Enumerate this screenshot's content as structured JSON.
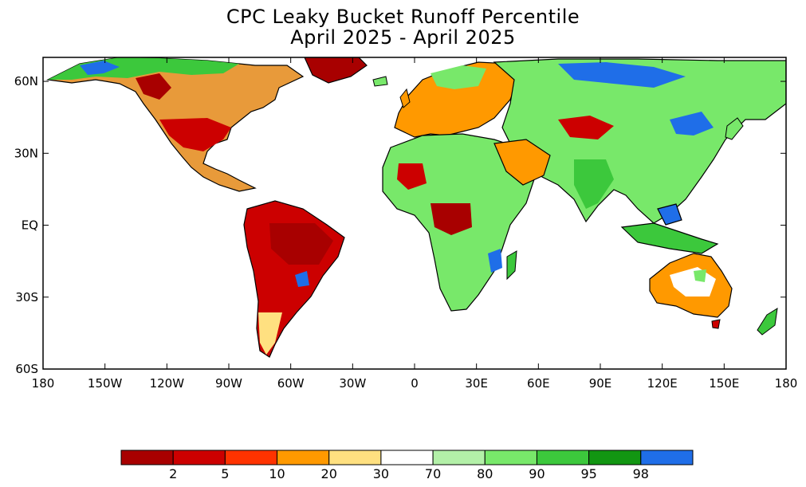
{
  "title": {
    "line1": "CPC Leaky Bucket Runoff Percentile",
    "line2": "April 2025 - April 2025"
  },
  "map": {
    "lon_range": [
      -180,
      180
    ],
    "lat_range": [
      -60,
      70
    ],
    "lat_ticks": [
      {
        "value": 60,
        "label": "60N"
      },
      {
        "value": 30,
        "label": "30N"
      },
      {
        "value": 0,
        "label": "EQ"
      },
      {
        "value": -30,
        "label": "30S"
      },
      {
        "value": -60,
        "label": "60S"
      }
    ],
    "lon_ticks": [
      {
        "value": -180,
        "label": "180"
      },
      {
        "value": -150,
        "label": "150W"
      },
      {
        "value": -120,
        "label": "120W"
      },
      {
        "value": -90,
        "label": "90W"
      },
      {
        "value": -60,
        "label": "60W"
      },
      {
        "value": -30,
        "label": "30W"
      },
      {
        "value": 0,
        "label": "0"
      },
      {
        "value": 30,
        "label": "30E"
      },
      {
        "value": 60,
        "label": "60E"
      },
      {
        "value": 90,
        "label": "90E"
      },
      {
        "value": 120,
        "label": "120E"
      },
      {
        "value": 150,
        "label": "150E"
      },
      {
        "value": 180,
        "label": "180"
      }
    ]
  },
  "colorbar": {
    "colors": [
      "#a80000",
      "#cc0000",
      "#ff3300",
      "#ff9900",
      "#ffe080",
      "#ffffff",
      "#b3f0a8",
      "#78e86a",
      "#3cc83c",
      "#129612",
      "#1f6ee8"
    ],
    "labels": [
      "2",
      "5",
      "10",
      "20",
      "30",
      "70",
      "80",
      "90",
      "95",
      "98"
    ]
  }
}
